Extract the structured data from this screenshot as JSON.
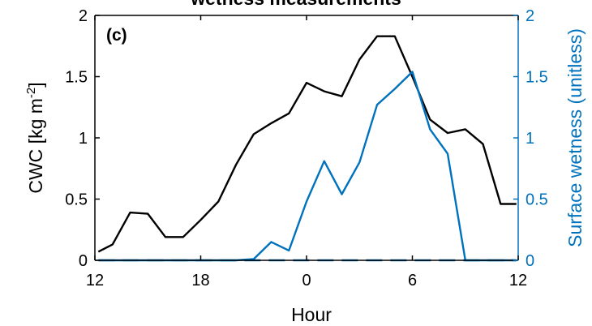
{
  "chart_data": {
    "type": "line",
    "title": "wetness measurements",
    "panel_label": "(c)",
    "xlabel": "Hour",
    "ylabel_left": "CWC [kg m-2]",
    "ylabel_left_main": "CWC [kg m",
    "ylabel_left_sup": "-2",
    "ylabel_left_close": "]",
    "ylabel_right": "Surface wetness (unitless)",
    "x_ticks": [
      "12",
      "18",
      "0",
      "6",
      "12"
    ],
    "x_tick_hours": [
      0,
      6,
      12,
      18,
      24
    ],
    "xlim_hours": [
      0,
      24
    ],
    "ylim_left": [
      0,
      2
    ],
    "ylim_right": [
      0,
      2
    ],
    "y_ticks_left": [
      "0",
      "0.5",
      "1",
      "1.5",
      "2"
    ],
    "y_ticks_right": [
      "0",
      "0.5",
      "1",
      "1.5",
      "2"
    ],
    "grid": false,
    "colors": {
      "left_axis": "#000000",
      "right_axis": "#0072BD"
    },
    "series": [
      {
        "axis": "left",
        "style": "solid",
        "color": "#000000",
        "x": [
          0.2,
          1.0,
          2.0,
          3.0,
          4.0,
          5.0,
          6.0,
          7.0,
          8.0,
          9.0,
          10.0,
          11.0,
          12.0,
          13.0,
          14.0,
          15.0,
          16.0,
          17.0,
          18.0,
          19.0,
          20.0,
          21.0,
          22.0,
          23.0,
          23.9
        ],
        "y": [
          0.07,
          0.13,
          0.39,
          0.38,
          0.19,
          0.19,
          0.33,
          0.48,
          0.78,
          1.03,
          1.12,
          1.2,
          1.45,
          1.38,
          1.34,
          1.64,
          1.83,
          1.83,
          1.5,
          1.15,
          1.04,
          1.07,
          0.95,
          0.46,
          0.46
        ]
      },
      {
        "axis": "right",
        "style": "solid",
        "color": "#0072BD",
        "x": [
          0.2,
          1.0,
          2.0,
          3.0,
          4.0,
          5.0,
          6.0,
          7.0,
          8.0,
          9.0,
          10.0,
          11.0,
          12.0,
          13.0,
          14.0,
          15.0,
          16.0,
          17.0,
          18.0,
          19.0,
          20.0,
          21.0,
          22.0,
          23.0,
          23.9
        ],
        "y": [
          0,
          0,
          0,
          0,
          0,
          0,
          0,
          0,
          0,
          0.01,
          0.15,
          0.08,
          0.48,
          0.81,
          0.54,
          0.8,
          1.27,
          1.4,
          1.54,
          1.07,
          0.87,
          0,
          0,
          0,
          0
        ]
      },
      {
        "axis": "right",
        "style": "dashed",
        "color": "#0072BD",
        "x": [
          0.2,
          23.9
        ],
        "y": [
          0,
          0
        ]
      }
    ]
  }
}
